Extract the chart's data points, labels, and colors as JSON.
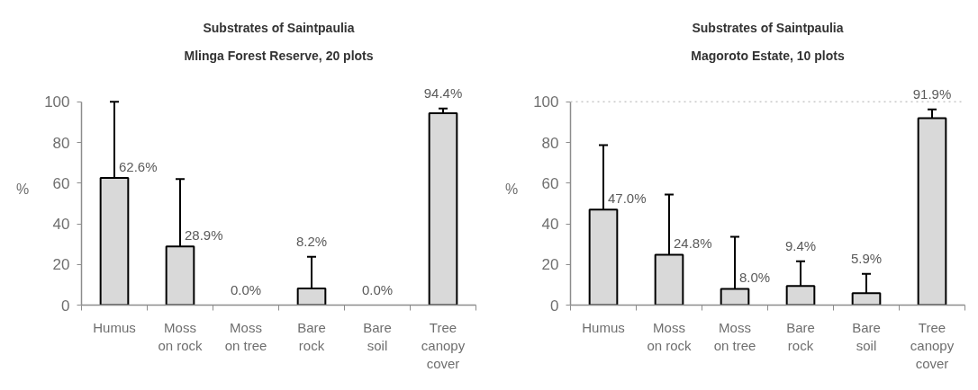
{
  "chart_data": [
    {
      "type": "bar",
      "title": "Substrates of Saintpaulia",
      "subtitle": "Mlinga Forest Reserve, 20 plots",
      "ylabel": "%",
      "categories": [
        "Humus",
        "Moss\non rock",
        "Moss\non tree",
        "Bare\nrock",
        "Bare\nsoil",
        "Tree\ncanopy\ncover"
      ],
      "values": [
        62.6,
        28.9,
        0.0,
        8.2,
        0.0,
        94.4
      ],
      "errors": [
        [
          62.6,
          100
        ],
        [
          28.9,
          62
        ],
        null,
        [
          8.2,
          23.8
        ],
        null,
        [
          94.4,
          96.7
        ]
      ],
      "value_labels": [
        "62.6%",
        "28.9%",
        "0.0%",
        "8.2%",
        "0.0%",
        "94.4%"
      ],
      "color": "#d9d9d9",
      "ylim": [
        0,
        100
      ],
      "yticks": [
        0,
        20,
        40,
        60,
        80,
        100
      ]
    },
    {
      "type": "bar",
      "title": "Substrates of Saintpaulia",
      "subtitle": "Magoroto Estate, 10 plots",
      "ylabel": "%",
      "categories": [
        "Humus",
        "Moss\non rock",
        "Moss\non tree",
        "Bare\nrock",
        "Bare\nsoil",
        "Tree\ncanopy\ncover"
      ],
      "values": [
        47.0,
        24.8,
        8.0,
        9.4,
        5.9,
        91.9
      ],
      "errors": [
        [
          47.0,
          78.7
        ],
        [
          24.8,
          54.4
        ],
        [
          8.0,
          33.6
        ],
        [
          9.4,
          21.6
        ],
        [
          5.9,
          15.4
        ],
        [
          91.9,
          96.3
        ]
      ],
      "value_labels": [
        "47.0%",
        "24.8%",
        "8.0%",
        "9.4%",
        "5.9%",
        "91.9%"
      ],
      "color": "#d9d9d9",
      "ylim": [
        0,
        100
      ],
      "yticks": [
        0,
        20,
        40,
        60,
        80,
        100
      ],
      "ref_lines": [
        {
          "axis": "y",
          "value": 100,
          "color": "#c8c8c8",
          "line_style": "dotted"
        }
      ]
    }
  ]
}
